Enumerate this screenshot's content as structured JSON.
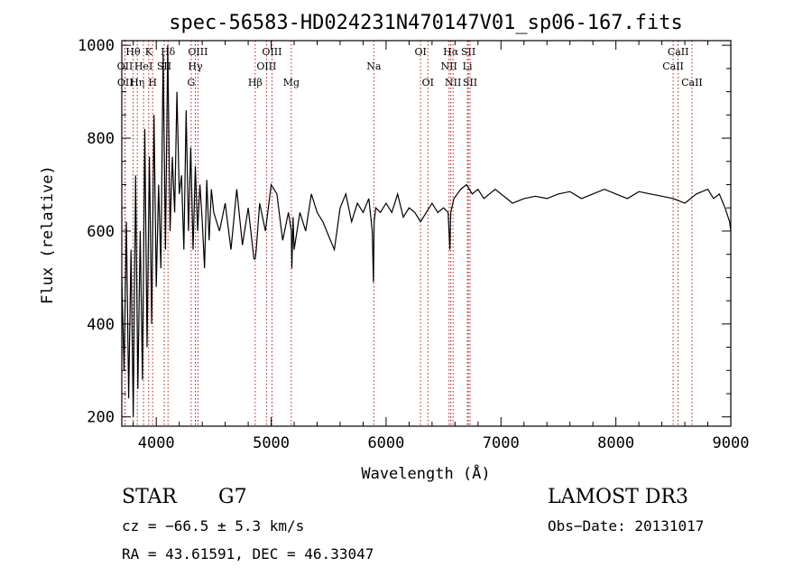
{
  "chart_data": {
    "type": "line",
    "title": "spec-56583-HD024231N470147V01_sp06-167.fits",
    "xlabel": "Wavelength (Å)",
    "ylabel": "Flux (relative)",
    "xlim": [
      3700,
      9000
    ],
    "ylim": [
      180,
      1010
    ],
    "x_ticks": [
      4000,
      5000,
      6000,
      7000,
      8000,
      9000
    ],
    "y_ticks": [
      200,
      400,
      600,
      800,
      1000
    ],
    "grid": false,
    "series": [
      {
        "name": "spectrum",
        "x": [
          3700,
          3720,
          3740,
          3760,
          3780,
          3800,
          3820,
          3840,
          3860,
          3880,
          3900,
          3920,
          3940,
          3960,
          3980,
          4000,
          4020,
          4040,
          4060,
          4080,
          4100,
          4120,
          4140,
          4160,
          4180,
          4200,
          4220,
          4240,
          4260,
          4280,
          4300,
          4320,
          4340,
          4360,
          4380,
          4400,
          4420,
          4440,
          4460,
          4480,
          4500,
          4550,
          4600,
          4650,
          4700,
          4750,
          4800,
          4850,
          4861,
          4870,
          4900,
          4950,
          5000,
          5050,
          5100,
          5150,
          5175,
          5180,
          5190,
          5200,
          5250,
          5300,
          5350,
          5400,
          5450,
          5500,
          5550,
          5600,
          5650,
          5700,
          5750,
          5800,
          5850,
          5880,
          5890,
          5896,
          5910,
          5950,
          6000,
          6050,
          6100,
          6150,
          6200,
          6250,
          6300,
          6350,
          6400,
          6450,
          6500,
          6540,
          6555,
          6563,
          6572,
          6590,
          6620,
          6650,
          6700,
          6750,
          6800,
          6850,
          6900,
          6950,
          7000,
          7050,
          7100,
          7200,
          7300,
          7400,
          7500,
          7600,
          7700,
          7800,
          7900,
          8000,
          8100,
          8200,
          8300,
          8400,
          8500,
          8600,
          8700,
          8800,
          8850,
          8900,
          8950,
          8990,
          9000
        ],
        "values": [
          500,
          300,
          620,
          240,
          560,
          200,
          720,
          260,
          600,
          280,
          820,
          350,
          760,
          400,
          850,
          480,
          700,
          520,
          980,
          560,
          1000,
          600,
          760,
          640,
          900,
          680,
          720,
          560,
          860,
          600,
          780,
          560,
          740,
          600,
          700,
          620,
          520,
          710,
          580,
          690,
          640,
          600,
          660,
          560,
          690,
          570,
          650,
          540,
          540,
          560,
          660,
          600,
          700,
          680,
          580,
          640,
          600,
          520,
          630,
          560,
          640,
          600,
          680,
          640,
          620,
          590,
          560,
          650,
          680,
          620,
          660,
          640,
          670,
          600,
          490,
          620,
          650,
          640,
          660,
          640,
          680,
          630,
          650,
          640,
          620,
          640,
          660,
          640,
          650,
          640,
          560,
          640,
          650,
          670,
          680,
          690,
          700,
          680,
          690,
          670,
          680,
          690,
          680,
          670,
          660,
          670,
          675,
          670,
          680,
          685,
          670,
          680,
          690,
          680,
          670,
          685,
          680,
          675,
          670,
          660,
          680,
          690,
          670,
          680,
          650,
          620,
          600
        ]
      }
    ],
    "spectral_lines": [
      {
        "label": "Hθ",
        "wavelength": 3798,
        "row": 1
      },
      {
        "label": "OII",
        "wavelength": 3727,
        "row": 2
      },
      {
        "label": "OII",
        "wavelength": 3729,
        "row": 3
      },
      {
        "label": "Hη",
        "wavelength": 3835,
        "row": 3
      },
      {
        "label": "HeI",
        "wavelength": 3889,
        "row": 2
      },
      {
        "label": "K",
        "wavelength": 3934,
        "row": 1
      },
      {
        "label": "H",
        "wavelength": 3968,
        "row": 3
      },
      {
        "label": "SII",
        "wavelength": 4069,
        "row": 2
      },
      {
        "label": "Hδ",
        "wavelength": 4102,
        "row": 1
      },
      {
        "label": "OIII",
        "wavelength": 4363,
        "row": 1
      },
      {
        "label": "Hγ",
        "wavelength": 4340,
        "row": 2
      },
      {
        "label": "G",
        "wavelength": 4304,
        "row": 3
      },
      {
        "label": "Hβ",
        "wavelength": 4861,
        "row": 3
      },
      {
        "label": "OIII",
        "wavelength": 5007,
        "row": 1
      },
      {
        "label": "OIII",
        "wavelength": 4959,
        "row": 2
      },
      {
        "label": "Mg",
        "wavelength": 5175,
        "row": 3
      },
      {
        "label": "Na",
        "wavelength": 5893,
        "row": 2
      },
      {
        "label": "OI",
        "wavelength": 6300,
        "row": 1
      },
      {
        "label": "OI",
        "wavelength": 6364,
        "row": 3
      },
      {
        "label": "Hα",
        "wavelength": 6563,
        "row": 1
      },
      {
        "label": "SII",
        "wavelength": 6716,
        "row": 1
      },
      {
        "label": "NII",
        "wavelength": 6548,
        "row": 2
      },
      {
        "label": "Li",
        "wavelength": 6708,
        "row": 2
      },
      {
        "label": "NII",
        "wavelength": 6583,
        "row": 3
      },
      {
        "label": "SII",
        "wavelength": 6731,
        "row": 3
      },
      {
        "label": "CaII",
        "wavelength": 8542,
        "row": 1
      },
      {
        "label": "CaII",
        "wavelength": 8498,
        "row": 2
      },
      {
        "label": "CaII",
        "wavelength": 8662,
        "row": 3
      }
    ]
  },
  "info": {
    "object_class": "STAR",
    "subclass": "G7",
    "survey": "LAMOST DR3",
    "cz": "cz = −66.5 ± 5.3 km/s",
    "obs_date": "Obs−Date: 20131017",
    "coords": "RA =  43.61591, DEC =  46.33047"
  },
  "colors": {
    "spectrum": "#000000",
    "spectral_line": "#b02020",
    "axes": "#000000"
  }
}
